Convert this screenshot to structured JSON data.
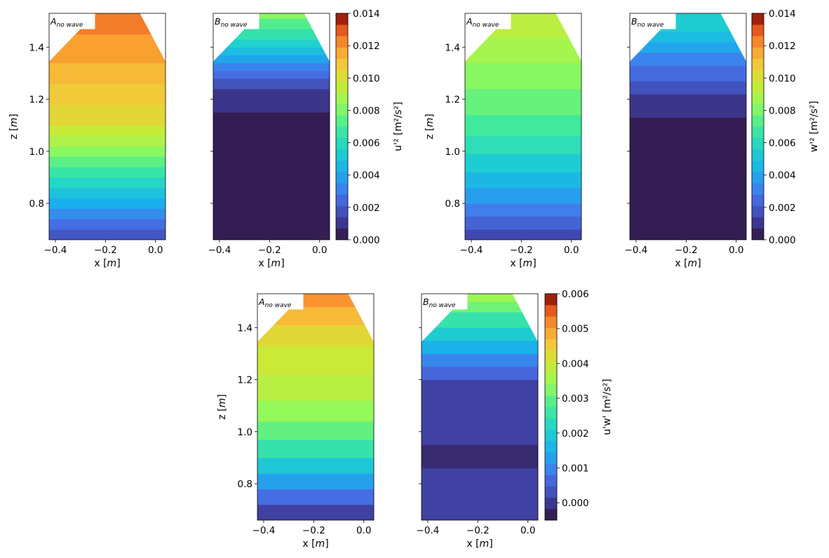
{
  "chart_data": [
    {
      "type": "heatmap",
      "panels": [
        {
          "label": "A",
          "label_sub": "no wave",
          "bands": [
            [
              0.66,
              0.0019
            ],
            [
              0.7,
              0.0026
            ],
            [
              0.74,
              0.0034
            ],
            [
              0.78,
              0.0042
            ],
            [
              0.82,
              0.005
            ],
            [
              0.86,
              0.0058
            ],
            [
              0.9,
              0.0066
            ],
            [
              0.94,
              0.0074
            ],
            [
              0.98,
              0.0082
            ],
            [
              1.02,
              0.009
            ],
            [
              1.06,
              0.0096
            ],
            [
              1.1,
              0.0104
            ],
            [
              1.18,
              0.0108
            ],
            [
              1.26,
              0.0112
            ],
            [
              1.34,
              0.0118
            ],
            [
              1.45,
              0.0124
            ]
          ]
        },
        {
          "label": "B",
          "label_sub": "no wave",
          "bands": [
            [
              0.66,
              0.0003
            ],
            [
              1.15,
              0.001
            ],
            [
              1.24,
              0.0018
            ],
            [
              1.28,
              0.0026
            ],
            [
              1.31,
              0.0032
            ],
            [
              1.34,
              0.004
            ],
            [
              1.37,
              0.0048
            ],
            [
              1.4,
              0.0056
            ],
            [
              1.43,
              0.0064
            ],
            [
              1.47,
              0.0072
            ],
            [
              1.51,
              0.0082
            ]
          ]
        }
      ],
      "xlabel": "x [m]",
      "ylabel": "z [m]",
      "xticks": [
        "-0.4",
        "-0.2",
        "0.0"
      ],
      "yticks": [
        "0.8",
        "1.0",
        "1.2",
        "1.4"
      ],
      "xlim": [
        -0.425,
        0.04
      ],
      "ylim": [
        0.66,
        1.53
      ],
      "colorbar": {
        "label": "u'² [m²/s²]",
        "min": 0.0,
        "max": 0.014,
        "ticks": [
          "0.000",
          "0.002",
          "0.004",
          "0.006",
          "0.008",
          "0.010",
          "0.012",
          "0.014"
        ]
      }
    },
    {
      "type": "heatmap",
      "panels": [
        {
          "label": "A",
          "label_sub": "no wave",
          "bands": [
            [
              0.66,
              0.0015
            ],
            [
              0.7,
              0.0023
            ],
            [
              0.75,
              0.003
            ],
            [
              0.8,
              0.0038
            ],
            [
              0.86,
              0.0046
            ],
            [
              0.92,
              0.0054
            ],
            [
              0.99,
              0.0062
            ],
            [
              1.06,
              0.0069
            ],
            [
              1.14,
              0.0076
            ],
            [
              1.24,
              0.0082
            ],
            [
              1.34,
              0.0088
            ],
            [
              1.44,
              0.0093
            ]
          ]
        },
        {
          "label": "B",
          "label_sub": "no wave",
          "bands": [
            [
              0.66,
              0.0003
            ],
            [
              1.13,
              0.001
            ],
            [
              1.22,
              0.0018
            ],
            [
              1.27,
              0.0025
            ],
            [
              1.33,
              0.0032
            ],
            [
              1.38,
              0.004
            ],
            [
              1.42,
              0.0047
            ],
            [
              1.46,
              0.0054
            ]
          ]
        }
      ],
      "xlabel": "x [m]",
      "ylabel": "z [m]",
      "xticks": [
        "-0.4",
        "-0.2",
        "0.0"
      ],
      "yticks": [
        "0.8",
        "1.0",
        "1.2",
        "1.4"
      ],
      "xlim": [
        -0.425,
        0.04
      ],
      "ylim": [
        0.66,
        1.53
      ],
      "colorbar": {
        "label": "w'² [m²/s²]",
        "min": 0.0,
        "max": 0.014,
        "ticks": [
          "0.000",
          "0.002",
          "0.004",
          "0.006",
          "0.008",
          "0.010",
          "0.012",
          "0.014"
        ]
      }
    },
    {
      "type": "heatmap",
      "panels": [
        {
          "label": "A",
          "label_sub": "no wave",
          "bands": [
            [
              0.66,
              0.0001
            ],
            [
              0.72,
              0.0007
            ],
            [
              0.78,
              0.0013
            ],
            [
              0.84,
              0.0019
            ],
            [
              0.9,
              0.0025
            ],
            [
              0.97,
              0.003
            ],
            [
              1.04,
              0.0034
            ],
            [
              1.12,
              0.0038
            ],
            [
              1.22,
              0.004
            ],
            [
              1.33,
              0.0043
            ],
            [
              1.41,
              0.0047
            ],
            [
              1.48,
              0.0051
            ]
          ]
        },
        {
          "label": "B",
          "label_sub": "no wave",
          "bands": [
            [
              0.66,
              0.0001
            ],
            [
              0.86,
              -0.0002
            ],
            [
              0.95,
              0.0001
            ],
            [
              1.2,
              0.0006
            ],
            [
              1.25,
              0.001
            ],
            [
              1.3,
              0.0015
            ],
            [
              1.35,
              0.002
            ],
            [
              1.4,
              0.0025
            ],
            [
              1.46,
              0.0031
            ],
            [
              1.5,
              0.0035
            ]
          ]
        }
      ],
      "xlabel": "x [m]",
      "ylabel": "z [m]",
      "xticks": [
        "-0.4",
        "-0.2",
        "0.0"
      ],
      "yticks": [
        "0.8",
        "1.0",
        "1.2",
        "1.4"
      ],
      "xlim": [
        -0.425,
        0.04
      ],
      "ylim": [
        0.66,
        1.53
      ],
      "colorbar": {
        "label": "u'w' [m²/s²]",
        "min": -0.0005,
        "max": 0.006,
        "ticks": [
          "0.000",
          "0.001",
          "0.002",
          "0.003",
          "0.004",
          "0.005",
          "0.006"
        ]
      }
    }
  ]
}
